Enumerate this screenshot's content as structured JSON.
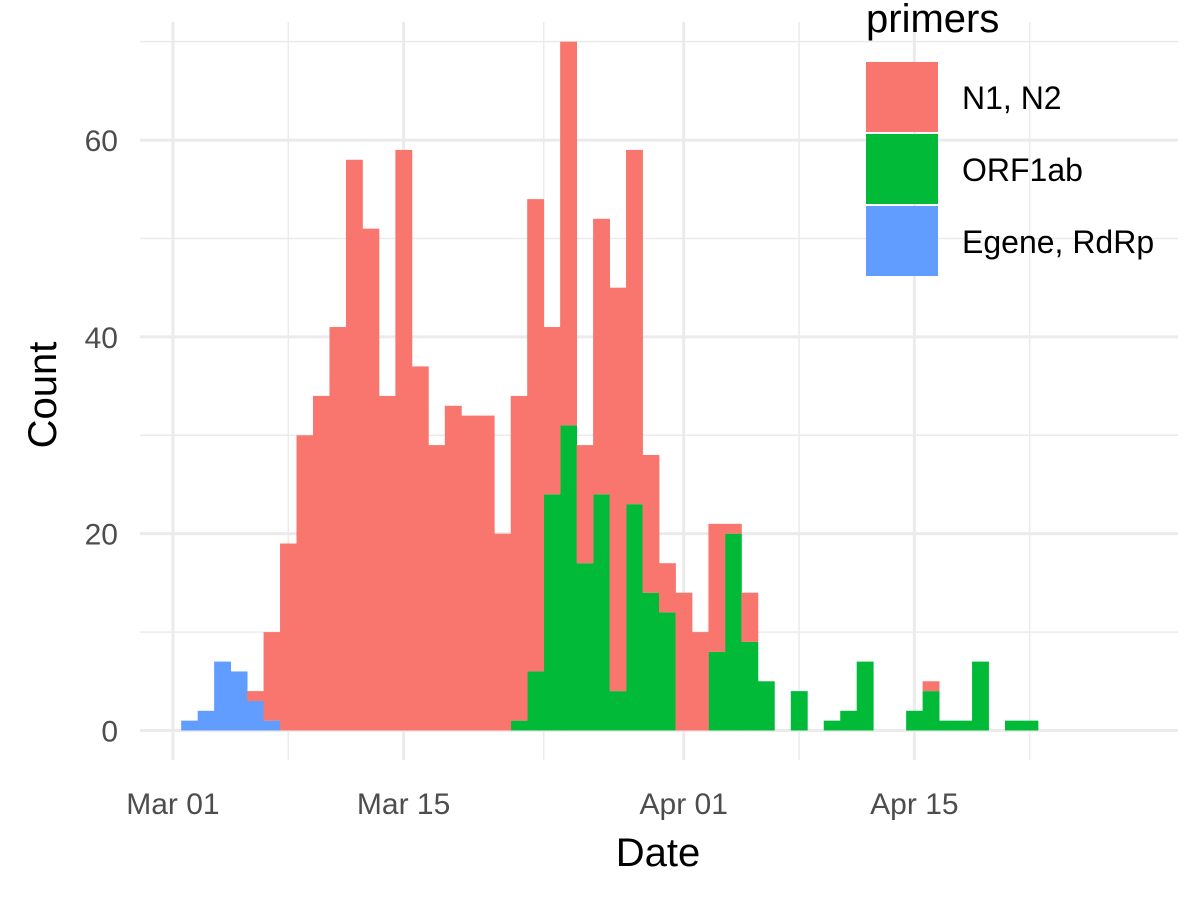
{
  "chart_data": {
    "type": "bar",
    "xlabel": "Date",
    "ylabel": "Count",
    "x_axis": {
      "type": "date",
      "range": [
        "2020-02-28",
        "2020-05-01"
      ],
      "ticks": [
        {
          "date": "2020-03-01",
          "label": "Mar 01"
        },
        {
          "date": "2020-03-15",
          "label": "Mar 15"
        },
        {
          "date": "2020-04-01",
          "label": "Apr 01"
        },
        {
          "date": "2020-04-15",
          "label": "Apr 15"
        }
      ]
    },
    "y_axis": {
      "range": [
        -3,
        72
      ],
      "ticks": [
        0,
        20,
        40,
        60
      ]
    },
    "stacking": "stacked",
    "grid": true,
    "legend": {
      "title": "primers",
      "position": "top-right",
      "items": [
        {
          "label": "N1, N2",
          "color": "#F8766D"
        },
        {
          "label": "ORF1ab",
          "color": "#00BA38"
        },
        {
          "label": "Egene, RdRp",
          "color": "#619CFF"
        }
      ]
    },
    "series": [
      {
        "name": "Egene, RdRp",
        "color": "#619CFF",
        "points": [
          [
            "2020-03-02",
            1
          ],
          [
            "2020-03-03",
            2
          ],
          [
            "2020-03-04",
            7
          ],
          [
            "2020-03-05",
            6
          ],
          [
            "2020-03-06",
            3
          ],
          [
            "2020-03-07",
            1
          ]
        ]
      },
      {
        "name": "ORF1ab",
        "color": "#00BA38",
        "points": [
          [
            "2020-03-22",
            1
          ],
          [
            "2020-03-23",
            6
          ],
          [
            "2020-03-24",
            24
          ],
          [
            "2020-03-25",
            31
          ],
          [
            "2020-03-26",
            17
          ],
          [
            "2020-03-27",
            24
          ],
          [
            "2020-03-28",
            4
          ],
          [
            "2020-03-29",
            23
          ],
          [
            "2020-03-30",
            14
          ],
          [
            "2020-03-31",
            12
          ],
          [
            "2020-04-03",
            8
          ],
          [
            "2020-04-04",
            20
          ],
          [
            "2020-04-05",
            9
          ],
          [
            "2020-04-06",
            5
          ],
          [
            "2020-04-08",
            4
          ],
          [
            "2020-04-10",
            1
          ],
          [
            "2020-04-11",
            2
          ],
          [
            "2020-04-12",
            7
          ],
          [
            "2020-04-15",
            2
          ],
          [
            "2020-04-16",
            4
          ],
          [
            "2020-04-17",
            1
          ],
          [
            "2020-04-18",
            1
          ],
          [
            "2020-04-19",
            7
          ],
          [
            "2020-04-21",
            1
          ],
          [
            "2020-04-22",
            1
          ]
        ]
      },
      {
        "name": "N1, N2",
        "color": "#F8766D",
        "points": [
          [
            "2020-03-06",
            1
          ],
          [
            "2020-03-07",
            9
          ],
          [
            "2020-03-08",
            19
          ],
          [
            "2020-03-09",
            30
          ],
          [
            "2020-03-10",
            34
          ],
          [
            "2020-03-11",
            41
          ],
          [
            "2020-03-12",
            58
          ],
          [
            "2020-03-13",
            51
          ],
          [
            "2020-03-14",
            34
          ],
          [
            "2020-03-15",
            59
          ],
          [
            "2020-03-16",
            37
          ],
          [
            "2020-03-17",
            29
          ],
          [
            "2020-03-18",
            33
          ],
          [
            "2020-03-19",
            32
          ],
          [
            "2020-03-20",
            32
          ],
          [
            "2020-03-21",
            20
          ],
          [
            "2020-03-22",
            33
          ],
          [
            "2020-03-23",
            48
          ],
          [
            "2020-03-24",
            17
          ],
          [
            "2020-03-25",
            39
          ],
          [
            "2020-03-26",
            12
          ],
          [
            "2020-03-27",
            28
          ],
          [
            "2020-03-28",
            41
          ],
          [
            "2020-03-29",
            36
          ],
          [
            "2020-03-30",
            14
          ],
          [
            "2020-03-31",
            5
          ],
          [
            "2020-04-01",
            14
          ],
          [
            "2020-04-02",
            10
          ],
          [
            "2020-04-03",
            13
          ],
          [
            "2020-04-04",
            1
          ],
          [
            "2020-04-05",
            5
          ],
          [
            "2020-04-16",
            1
          ]
        ]
      }
    ]
  }
}
